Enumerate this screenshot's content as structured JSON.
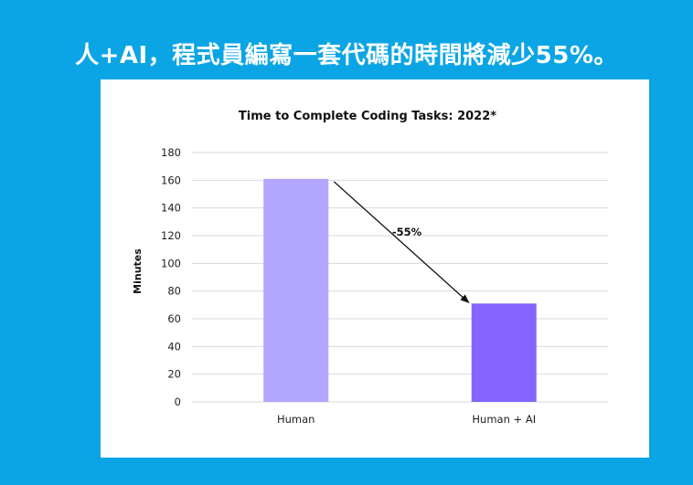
{
  "slide": {
    "title": "人+AI，程式員編寫一套代碼的時間將減少55%。",
    "background": "#0ba5e5"
  },
  "chart_data": {
    "type": "bar",
    "title": "Time to Complete Coding Tasks: 2022*",
    "xlabel": "",
    "ylabel": "Minutes",
    "categories": [
      "Human",
      "Human + AI"
    ],
    "values": [
      161,
      71
    ],
    "colors": [
      "#b3a6ff",
      "#8466ff"
    ],
    "ylim": [
      0,
      180
    ],
    "yticks": [
      "0",
      "20",
      "40",
      "60",
      "80",
      "100",
      "120",
      "140",
      "160",
      "180"
    ],
    "grid": true,
    "annotation": "-55%"
  }
}
